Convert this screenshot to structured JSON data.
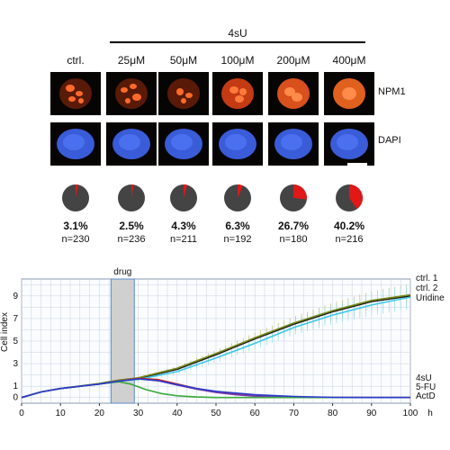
{
  "figure": {
    "treatment_label": "4sU",
    "conditions": [
      "ctrl.",
      "25μM",
      "50μM",
      "100μM",
      "200μM",
      "400μM"
    ],
    "stain_labels": [
      "NPM1",
      "DAPI"
    ],
    "pie_fractions": [
      0.031,
      0.025,
      0.043,
      0.063,
      0.267,
      0.402
    ],
    "percentages": [
      "3.1%",
      "2.5%",
      "4.3%",
      "6.3%",
      "26.7%",
      "40.2%"
    ],
    "counts": [
      "n=230",
      "n=236",
      "n=211",
      "n=192",
      "n=180",
      "n=216"
    ],
    "colors": {
      "npm1": "#e0501c",
      "dapi": "#3a5cd8",
      "pie_dark": "#444444",
      "pie_red": "#e01818"
    }
  },
  "chart_data": {
    "type": "line",
    "xlabel": "h",
    "ylabel": "Cell index",
    "xlim": [
      0,
      100
    ],
    "ylim": [
      -0.5,
      10.5
    ],
    "xticks": [
      0,
      10,
      20,
      30,
      40,
      50,
      60,
      70,
      80,
      90,
      100
    ],
    "yticks": [
      0,
      1,
      3,
      5,
      7,
      9
    ],
    "grid": true,
    "drug_window": {
      "label": "drug",
      "x": [
        23,
        29
      ]
    },
    "series": [
      {
        "name": "ctrl. 1",
        "color": "#1a1a1a",
        "x": [
          0,
          5,
          10,
          20,
          25,
          30,
          40,
          50,
          60,
          70,
          80,
          90,
          100
        ],
        "y": [
          0,
          0.5,
          0.8,
          1.2,
          1.5,
          1.7,
          2.5,
          3.8,
          5.2,
          6.5,
          7.6,
          8.5,
          9.0
        ]
      },
      {
        "name": "ctrl. 2",
        "color": "#7a8a1a",
        "x": [
          0,
          5,
          10,
          20,
          25,
          30,
          40,
          50,
          60,
          70,
          80,
          90,
          100
        ],
        "y": [
          0,
          0.5,
          0.8,
          1.25,
          1.55,
          1.75,
          2.6,
          3.9,
          5.3,
          6.6,
          7.7,
          8.6,
          9.1
        ]
      },
      {
        "name": "Uridine",
        "color": "#3ec8e8",
        "x": [
          0,
          5,
          10,
          20,
          25,
          30,
          40,
          50,
          60,
          70,
          80,
          90,
          100
        ],
        "y": [
          0,
          0.5,
          0.8,
          1.2,
          1.45,
          1.6,
          2.3,
          3.5,
          4.8,
          6.2,
          7.3,
          8.2,
          8.9
        ]
      },
      {
        "name": "4sU",
        "color": "#cc2222",
        "x": [
          0,
          5,
          10,
          20,
          25,
          30,
          35,
          40,
          45,
          50,
          55,
          60,
          70,
          80,
          90,
          100
        ],
        "y": [
          0,
          0.5,
          0.8,
          1.2,
          1.45,
          1.7,
          1.6,
          1.2,
          0.8,
          0.5,
          0.3,
          0.15,
          0.05,
          0.0,
          0.0,
          0.0
        ]
      },
      {
        "name": "5-FU",
        "color": "#7a3aa8",
        "x": [
          0,
          5,
          10,
          20,
          25,
          30,
          35,
          40,
          45,
          50,
          55,
          60,
          70,
          80,
          90,
          100
        ],
        "y": [
          0,
          0.5,
          0.8,
          1.2,
          1.45,
          1.65,
          1.5,
          1.1,
          0.75,
          0.45,
          0.25,
          0.12,
          0.04,
          0.0,
          0.0,
          0.0
        ]
      },
      {
        "name": "ActD",
        "color": "#3aaa3a",
        "x": [
          0,
          5,
          10,
          20,
          25,
          28,
          32,
          36,
          40,
          45,
          50,
          60,
          70,
          80,
          90,
          100
        ],
        "y": [
          0,
          0.5,
          0.8,
          1.2,
          1.4,
          1.2,
          0.7,
          0.35,
          0.15,
          0.05,
          0.0,
          0.0,
          0.0,
          0.0,
          0.0,
          0.0
        ]
      },
      {
        "name": "",
        "color": "#2a3acc",
        "x": [
          0,
          5,
          10,
          20,
          25,
          30,
          35,
          40,
          45,
          50,
          60,
          70,
          80,
          90,
          100
        ],
        "y": [
          0,
          0.5,
          0.8,
          1.2,
          1.45,
          1.65,
          1.5,
          1.15,
          0.8,
          0.55,
          0.25,
          0.1,
          0.02,
          0.0,
          0.0
        ]
      }
    ]
  }
}
